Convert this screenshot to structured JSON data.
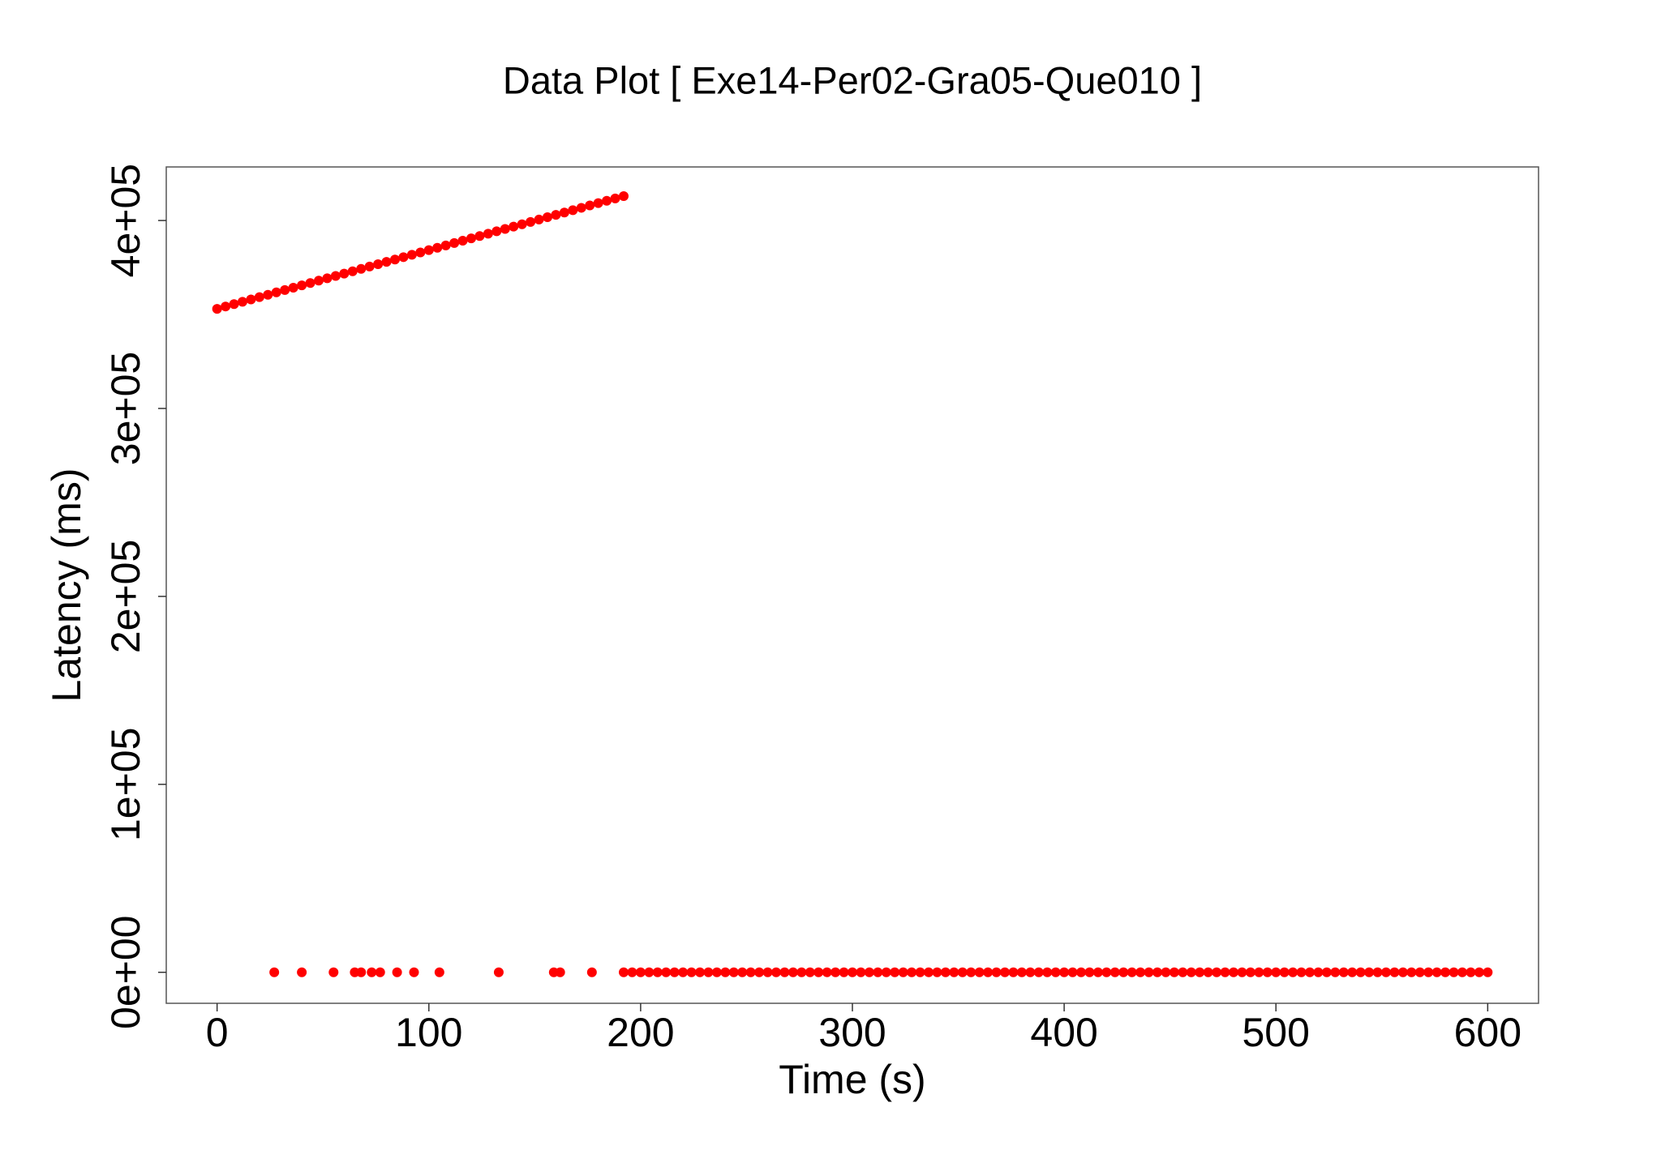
{
  "chart_data": {
    "type": "scatter",
    "title": "Data Plot [ Exe14-Per02-Gra05-Que010 ]",
    "x_label": "Time (s)",
    "y_label": "Latency (ms)",
    "color": "#ff0000",
    "x": [
      0,
      4,
      8,
      12,
      16,
      20,
      24,
      28,
      32,
      36,
      40,
      44,
      48,
      52,
      56,
      60,
      64,
      68,
      72,
      76,
      80,
      84,
      88,
      92,
      96,
      100,
      104,
      108,
      112,
      116,
      120,
      124,
      128,
      132,
      136,
      140,
      144,
      148,
      152,
      156,
      160,
      164,
      168,
      172,
      176,
      180,
      184,
      188,
      192,
      27,
      40,
      55,
      65,
      68,
      73,
      77,
      85,
      93,
      105,
      133,
      159,
      162,
      177,
      192,
      196,
      200,
      204,
      208,
      212,
      216,
      220,
      224,
      228,
      232,
      236,
      240,
      244,
      248,
      252,
      256,
      260,
      264,
      268,
      272,
      276,
      280,
      284,
      288,
      292,
      296,
      300,
      304,
      308,
      312,
      316,
      320,
      324,
      328,
      332,
      336,
      340,
      344,
      348,
      352,
      356,
      360,
      364,
      368,
      372,
      376,
      380,
      384,
      388,
      392,
      396,
      400,
      404,
      408,
      412,
      416,
      420,
      424,
      428,
      432,
      436,
      440,
      444,
      448,
      452,
      456,
      460,
      464,
      468,
      472,
      476,
      480,
      484,
      488,
      492,
      496,
      500,
      504,
      508,
      512,
      516,
      520,
      524,
      528,
      532,
      536,
      540,
      544,
      548,
      552,
      556,
      560,
      564,
      568,
      572,
      576,
      580,
      584,
      588,
      592,
      596,
      600
    ],
    "values": [
      353000,
      354250,
      355500,
      356750,
      358000,
      359250,
      360500,
      361750,
      363000,
      364250,
      365500,
      366750,
      368000,
      369250,
      370500,
      371750,
      373000,
      374250,
      375500,
      376750,
      378000,
      379250,
      380500,
      381750,
      383000,
      384250,
      385500,
      386750,
      388000,
      389250,
      390500,
      391750,
      393000,
      394250,
      395500,
      396750,
      398000,
      399250,
      400500,
      401750,
      403000,
      404250,
      405500,
      406750,
      408000,
      409250,
      410500,
      411750,
      413000,
      0,
      0,
      0,
      0,
      0,
      0,
      0,
      0,
      0,
      0,
      0,
      0,
      0,
      0,
      0,
      0,
      0,
      0,
      0,
      0,
      0,
      0,
      0,
      0,
      0,
      0,
      0,
      0,
      0,
      0,
      0,
      0,
      0,
      0,
      0,
      0,
      0,
      0,
      0,
      0,
      0,
      0,
      0,
      0,
      0,
      0,
      0,
      0,
      0,
      0,
      0,
      0,
      0,
      0,
      0,
      0,
      0,
      0,
      0,
      0,
      0,
      0,
      0,
      0,
      0,
      0,
      0,
      0,
      0,
      0,
      0,
      0,
      0,
      0,
      0,
      0,
      0,
      0,
      0,
      0,
      0,
      0,
      0,
      0,
      0,
      0,
      0,
      0,
      0,
      0,
      0,
      0,
      0,
      0,
      0,
      0,
      0,
      0,
      0,
      0,
      0,
      0,
      0,
      0,
      0,
      0,
      0,
      0,
      0,
      0,
      0,
      0,
      0,
      0,
      0,
      0,
      0
    ],
    "xlim": [
      -24,
      624
    ],
    "xticks": [
      0,
      100,
      200,
      300,
      400,
      500,
      600
    ],
    "ylim": [
      -16500,
      428500
    ],
    "yticks": [
      {
        "value": 0,
        "label": "0e+00"
      },
      {
        "value": 100000,
        "label": "1e+05"
      },
      {
        "value": 200000,
        "label": "2e+05"
      },
      {
        "value": 300000,
        "label": "3e+05"
      },
      {
        "value": 400000,
        "label": "4e+05"
      }
    ],
    "grid": false
  }
}
